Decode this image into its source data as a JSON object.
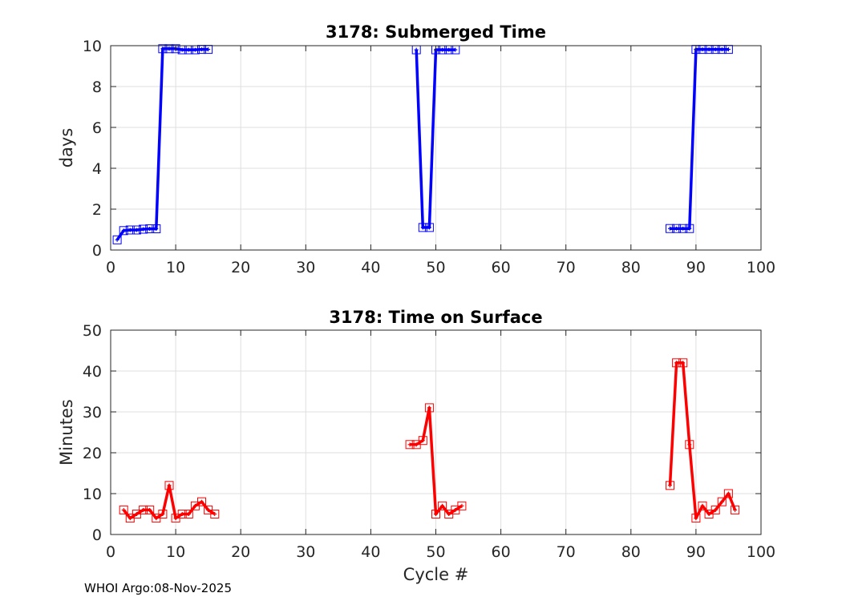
{
  "footer": "WHOI Argo:08-Nov-2025",
  "chart_data": [
    {
      "type": "line",
      "title": "3178: Submerged Time",
      "xlabel": "",
      "ylabel": "days",
      "xlim": [
        0,
        100
      ],
      "ylim": [
        0,
        10
      ],
      "xticks": [
        "0",
        "10",
        "20",
        "30",
        "40",
        "50",
        "60",
        "70",
        "80",
        "90",
        "100"
      ],
      "yticks": [
        "0",
        "2",
        "4",
        "6",
        "8",
        "10"
      ],
      "grid": true,
      "color": "#0000ff",
      "marker": "square",
      "series": [
        {
          "name": "submerged-time",
          "points": [
            [
              1,
              0.5
            ],
            [
              2,
              0.95
            ],
            [
              3,
              0.98
            ],
            [
              4,
              0.98
            ],
            [
              5,
              1.02
            ],
            [
              6,
              1.04
            ],
            [
              7,
              1.04
            ],
            [
              8,
              9.85
            ],
            [
              9,
              9.85
            ],
            [
              10,
              9.85
            ],
            [
              11,
              9.8
            ],
            [
              12,
              9.8
            ],
            [
              13,
              9.8
            ],
            [
              14,
              9.82
            ],
            [
              15,
              9.82
            ],
            null,
            [
              47,
              9.8
            ],
            [
              48,
              1.1
            ],
            [
              49,
              1.1
            ],
            [
              50,
              9.8
            ],
            [
              51,
              9.8
            ],
            [
              52,
              9.8
            ],
            [
              53,
              9.8
            ],
            null,
            [
              86,
              1.05
            ],
            [
              87,
              1.05
            ],
            [
              88,
              1.05
            ],
            [
              89,
              1.05
            ],
            [
              90,
              9.82
            ],
            [
              91,
              9.82
            ],
            [
              92,
              9.82
            ],
            [
              93,
              9.82
            ],
            [
              94,
              9.82
            ],
            [
              95,
              9.82
            ]
          ]
        }
      ]
    },
    {
      "type": "line",
      "title": "3178: Time on Surface",
      "xlabel": "Cycle #",
      "ylabel": "Minutes",
      "xlim": [
        0,
        100
      ],
      "ylim": [
        0,
        50
      ],
      "xticks": [
        "0",
        "10",
        "20",
        "30",
        "40",
        "50",
        "60",
        "70",
        "80",
        "90",
        "100"
      ],
      "yticks": [
        "0",
        "10",
        "20",
        "30",
        "40",
        "50"
      ],
      "grid": true,
      "color": "#ff0000",
      "marker": "square",
      "series": [
        {
          "name": "surface-time",
          "points": [
            [
              2,
              6
            ],
            [
              3,
              4
            ],
            [
              4,
              5
            ],
            [
              5,
              6
            ],
            [
              6,
              6
            ],
            [
              7,
              4
            ],
            [
              8,
              5
            ],
            [
              9,
              12
            ],
            [
              10,
              4
            ],
            [
              11,
              5
            ],
            [
              12,
              5
            ],
            [
              13,
              7
            ],
            [
              14,
              8
            ],
            [
              15,
              6
            ],
            [
              16,
              5
            ],
            null,
            [
              46,
              22
            ],
            [
              47,
              22
            ],
            [
              48,
              23
            ],
            [
              49,
              31
            ],
            [
              50,
              5
            ],
            [
              51,
              7
            ],
            [
              52,
              5
            ],
            [
              53,
              6
            ],
            [
              54,
              7
            ],
            null,
            [
              86,
              12
            ],
            [
              87,
              42
            ],
            [
              88,
              42
            ],
            [
              89,
              22
            ],
            [
              90,
              4
            ],
            [
              91,
              7
            ],
            [
              92,
              5
            ],
            [
              93,
              6
            ],
            [
              94,
              8
            ],
            [
              95,
              10
            ],
            [
              96,
              6
            ]
          ]
        }
      ]
    }
  ]
}
